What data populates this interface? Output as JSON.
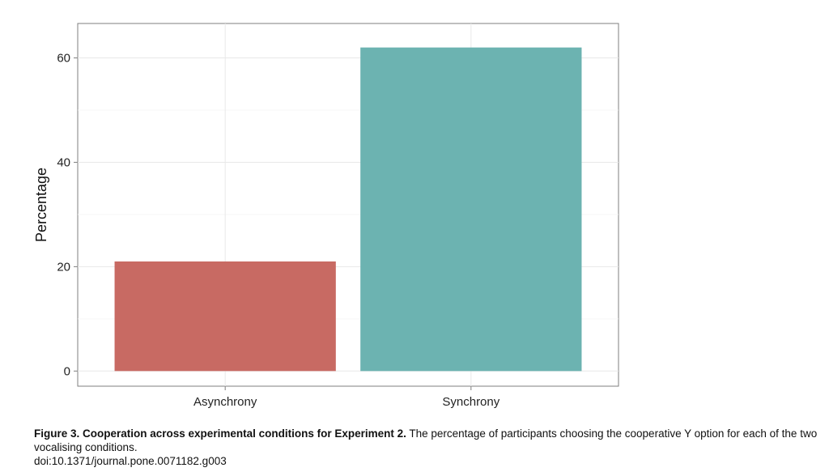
{
  "chart_data": {
    "type": "bar",
    "categories": [
      "Asynchrony",
      "Synchrony"
    ],
    "values": [
      21,
      62
    ],
    "colors": [
      "#C86A63",
      "#6CB3B1"
    ],
    "ylabel": "Percentage",
    "xlabel": "",
    "ylim": [
      0,
      65
    ],
    "yticks": [
      0,
      20,
      40,
      60
    ],
    "grid": true,
    "legend": "none"
  },
  "caption": {
    "figure_label": "Figure 3. Cooperation across experimental conditions for Experiment 2.",
    "text": " The percentage of participants choosing the cooperative Y option for each of the two vocalising conditions.",
    "doi": "doi:10.1371/journal.pone.0071182.g003"
  }
}
